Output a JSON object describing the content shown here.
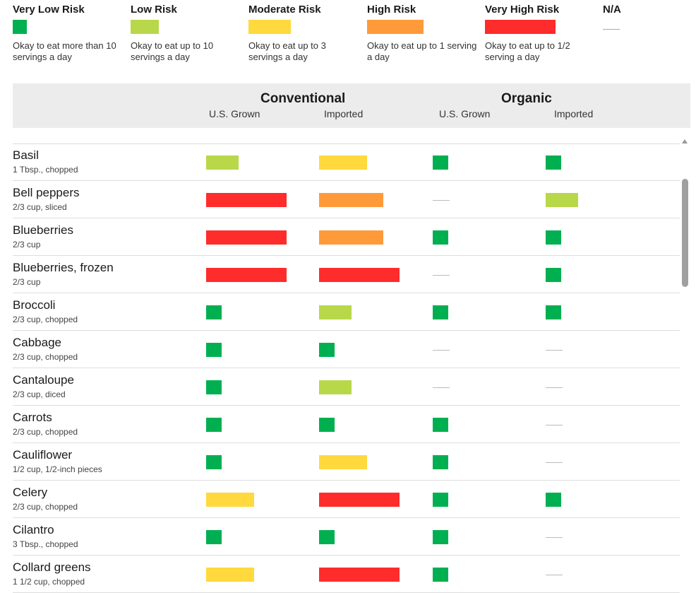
{
  "legend": [
    {
      "key": "vlow",
      "title": "Very Low Risk",
      "color": "#00b050",
      "width": 20,
      "desc": "Okay to eat more than 10 servings a day"
    },
    {
      "key": "low",
      "title": "Low Risk",
      "color": "#b8d84a",
      "width": 40,
      "desc": "Okay to eat up to 10 servings a day"
    },
    {
      "key": "mod",
      "title": "Moderate Risk",
      "color": "#ffd93d",
      "width": 60,
      "desc": "Okay to eat up to 3 servings a day"
    },
    {
      "key": "high",
      "title": "High Risk",
      "color": "#ff9a3a",
      "width": 80,
      "desc": "Okay to eat up to 1 serving a day"
    },
    {
      "key": "vhigh",
      "title": "Very High Risk",
      "color": "#ff2c2c",
      "width": 100,
      "desc": "Okay to eat up to 1/2 serving a day"
    },
    {
      "key": "na",
      "title": "N/A",
      "color": "#aaaaaa",
      "width": 0,
      "desc": ""
    }
  ],
  "header": {
    "conventional": "Conventional",
    "organic": "Organic",
    "cols": [
      "U.S. Grown",
      "Imported",
      "U.S. Grown",
      "Imported"
    ]
  },
  "rows": [
    {
      "name": "Basil",
      "serving": "1 Tbsp., chopped",
      "risk": [
        "low",
        "mod",
        "vlow",
        "vlow"
      ]
    },
    {
      "name": "Bell peppers",
      "serving": "2/3 cup, sliced",
      "risk": [
        "vhigh",
        "high",
        "na",
        "low"
      ]
    },
    {
      "name": "Blueberries",
      "serving": "2/3 cup",
      "risk": [
        "vhigh",
        "high",
        "vlow",
        "vlow"
      ]
    },
    {
      "name": "Blueberries, frozen",
      "serving": "2/3 cup",
      "risk": [
        "vhigh",
        "vhigh",
        "na",
        "vlow"
      ]
    },
    {
      "name": "Broccoli",
      "serving": "2/3 cup, chopped",
      "risk": [
        "vlow",
        "low",
        "vlow",
        "vlow"
      ]
    },
    {
      "name": "Cabbage",
      "serving": "2/3 cup, chopped",
      "risk": [
        "vlow",
        "vlow",
        "na",
        "na"
      ]
    },
    {
      "name": "Cantaloupe",
      "serving": "2/3 cup, diced",
      "risk": [
        "vlow",
        "low",
        "na",
        "na"
      ]
    },
    {
      "name": "Carrots",
      "serving": "2/3 cup, chopped",
      "risk": [
        "vlow",
        "vlow",
        "vlow",
        "na"
      ]
    },
    {
      "name": "Cauliflower",
      "serving": "1/2 cup, 1/2-inch pieces",
      "risk": [
        "vlow",
        "mod",
        "vlow",
        "na"
      ]
    },
    {
      "name": "Celery",
      "serving": "2/3 cup, chopped",
      "risk": [
        "mod",
        "vhigh",
        "vlow",
        "vlow"
      ]
    },
    {
      "name": "Cilantro",
      "serving": "3 Tbsp., chopped",
      "risk": [
        "vlow",
        "vlow",
        "vlow",
        "na"
      ]
    },
    {
      "name": "Collard greens",
      "serving": "1 1/2 cup, chopped",
      "risk": [
        "mod",
        "vhigh",
        "vlow",
        "na"
      ]
    }
  ]
}
